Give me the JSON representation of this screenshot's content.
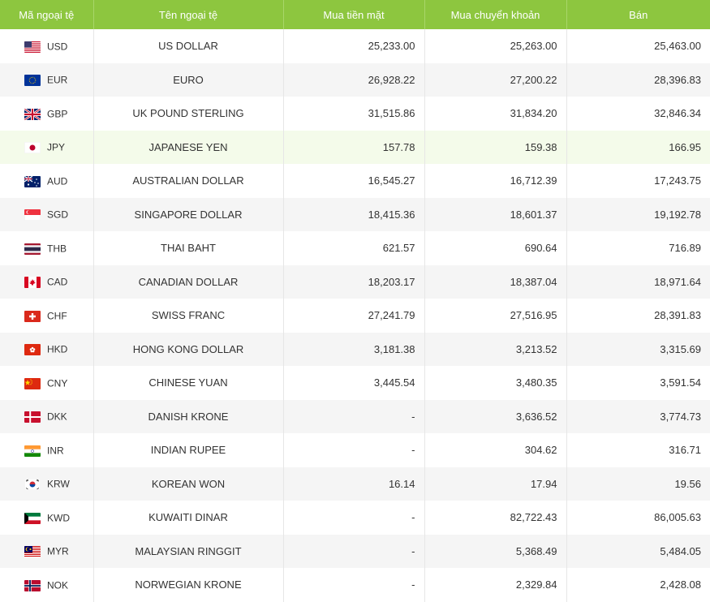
{
  "table": {
    "headers": [
      "Mã ngoại tệ",
      "Tên ngoại tệ",
      "Mua tiền mặt",
      "Mua chuyển khoản",
      "Bán"
    ],
    "rows": [
      [
        "USD",
        "US DOLLAR",
        "25,233.00",
        "25,263.00",
        "25,463.00"
      ],
      [
        "EUR",
        "EURO",
        "26,928.22",
        "27,200.22",
        "28,396.83"
      ],
      [
        "GBP",
        "UK POUND STERLING",
        "31,515.86",
        "31,834.20",
        "32,846.34"
      ],
      [
        "JPY",
        "JAPANESE YEN",
        "157.78",
        "159.38",
        "166.95"
      ],
      [
        "AUD",
        "AUSTRALIAN DOLLAR",
        "16,545.27",
        "16,712.39",
        "17,243.75"
      ],
      [
        "SGD",
        "SINGAPORE DOLLAR",
        "18,415.36",
        "18,601.37",
        "19,192.78"
      ],
      [
        "THB",
        "THAI BAHT",
        "621.57",
        "690.64",
        "716.89"
      ],
      [
        "CAD",
        "CANADIAN DOLLAR",
        "18,203.17",
        "18,387.04",
        "18,971.64"
      ],
      [
        "CHF",
        "SWISS FRANC",
        "27,241.79",
        "27,516.95",
        "28,391.83"
      ],
      [
        "HKD",
        "HONG KONG DOLLAR",
        "3,181.38",
        "3,213.52",
        "3,315.69"
      ],
      [
        "CNY",
        "CHINESE YUAN",
        "3,445.54",
        "3,480.35",
        "3,591.54"
      ],
      [
        "DKK",
        "DANISH KRONE",
        "-",
        "3,636.52",
        "3,774.73"
      ],
      [
        "INR",
        "INDIAN RUPEE",
        "-",
        "304.62",
        "316.71"
      ],
      [
        "KRW",
        "KOREAN WON",
        "16.14",
        "17.94",
        "19.56"
      ],
      [
        "KWD",
        "KUWAITI DINAR",
        "-",
        "82,722.43",
        "86,005.63"
      ],
      [
        "MYR",
        "MALAYSIAN RINGGIT",
        "-",
        "5,368.49",
        "5,484.05"
      ],
      [
        "NOK",
        "NORWEGIAN KRONE",
        "-",
        "2,329.84",
        "2,428.08"
      ]
    ]
  }
}
